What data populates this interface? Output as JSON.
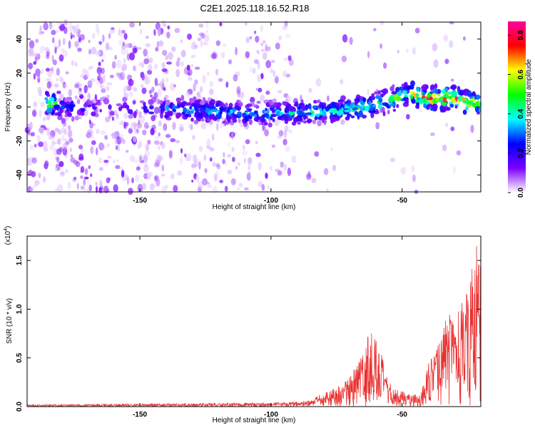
{
  "page_title": "C2E1.2025.118.16.52.R18",
  "chart_data": [
    {
      "type": "heatmap",
      "x_label": "Height of straight line (km)",
      "y_label": "Frequency (Hz)",
      "xlim": [
        -193,
        -20
      ],
      "ylim": [
        -50,
        50
      ],
      "x_ticks": [
        -150,
        -100,
        -50
      ],
      "y_ticks": [
        -40,
        -20,
        0,
        20,
        40
      ],
      "colorbar": {
        "label": "Normalized spectral amplitude",
        "range": [
          0,
          0.87
        ],
        "ticks": [
          "0.0",
          "0.2",
          "0.4",
          "0.6",
          "0.8"
        ],
        "tick_values": [
          0,
          0.2,
          0.4,
          0.6,
          0.8
        ],
        "colors": [
          "#ffffff",
          "#7b00ff",
          "#0000ff",
          "#00ffff",
          "#00ff00",
          "#ffff00",
          "#ff0000",
          "#ff00a0"
        ]
      },
      "ridge": [
        {
          "x": -182,
          "freq": 0,
          "amp": 0.32
        },
        {
          "x": -160,
          "freq": -1,
          "amp": 0.18
        },
        {
          "x": -140,
          "freq": -1,
          "amp": 0.35
        },
        {
          "x": -120,
          "freq": -3,
          "amp": 0.38
        },
        {
          "x": -100,
          "freq": -4,
          "amp": 0.4
        },
        {
          "x": -80,
          "freq": -3,
          "amp": 0.45
        },
        {
          "x": -65,
          "freq": 0,
          "amp": 0.5
        },
        {
          "x": -55,
          "freq": 4,
          "amp": 0.55
        },
        {
          "x": -48,
          "freq": 8,
          "amp": 0.6
        },
        {
          "x": -40,
          "freq": 5,
          "amp": 0.85
        },
        {
          "x": -30,
          "freq": 5,
          "amp": 0.8
        },
        {
          "x": -20,
          "freq": 2,
          "amp": 0.6
        }
      ]
    },
    {
      "type": "line",
      "x_label": "Height of straight line (km)",
      "y_label": "SNR (10 * v/v)",
      "y_scale_label": "(x10",
      "y_scale_exp": "4",
      "xlim": [
        -193,
        -20
      ],
      "ylim": [
        0,
        1.75
      ],
      "x_ticks": [
        -150,
        -100,
        -50
      ],
      "y_ticks": [
        0.0,
        0.5,
        1.0,
        1.5
      ],
      "y_tick_labels": [
        "0.0",
        "0.5",
        "1.0",
        "1.5"
      ],
      "color": "#e83030",
      "envelope": [
        {
          "x": -193,
          "y": 0.02
        },
        {
          "x": -100,
          "y": 0.04
        },
        {
          "x": -85,
          "y": 0.06
        },
        {
          "x": -80,
          "y": 0.15
        },
        {
          "x": -75,
          "y": 0.2
        },
        {
          "x": -70,
          "y": 0.3
        },
        {
          "x": -65,
          "y": 0.55
        },
        {
          "x": -62,
          "y": 0.85
        },
        {
          "x": -60,
          "y": 0.75
        },
        {
          "x": -57,
          "y": 0.45
        },
        {
          "x": -54,
          "y": 0.2
        },
        {
          "x": -48,
          "y": 0.15
        },
        {
          "x": -43,
          "y": 0.12
        },
        {
          "x": -40,
          "y": 0.45
        },
        {
          "x": -36,
          "y": 0.65
        },
        {
          "x": -33,
          "y": 1.0
        },
        {
          "x": -30,
          "y": 0.9
        },
        {
          "x": -27,
          "y": 1.1
        },
        {
          "x": -24,
          "y": 1.3
        },
        {
          "x": -22,
          "y": 1.7
        },
        {
          "x": -20,
          "y": 1.55
        }
      ]
    }
  ]
}
